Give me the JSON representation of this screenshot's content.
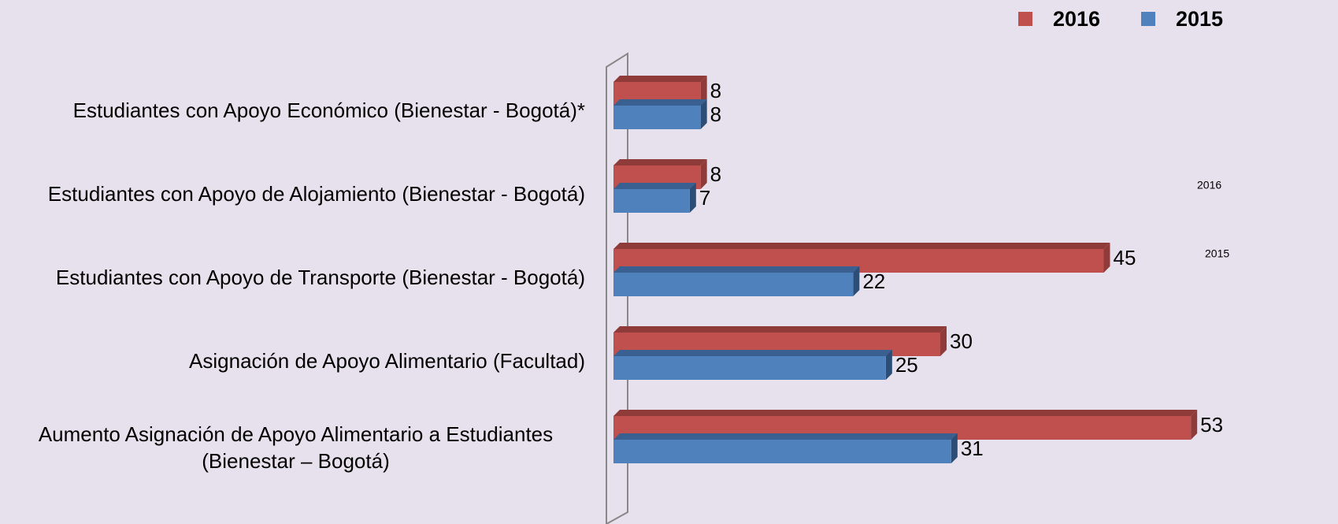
{
  "chart_data": {
    "type": "bar3d_horizontal",
    "categories": [
      "Estudiantes con Apoyo Económico (Bienestar - Bogotá)*",
      "Estudiantes con Apoyo de Alojamiento (Bienestar - Bogotá)",
      "Estudiantes con Apoyo de Transporte (Bienestar - Bogotá)",
      "Asignación de Apoyo Alimentario (Facultad)",
      "Aumento Asignación de Apoyo Alimentario a Estudiantes (Bienestar – Bogotá)"
    ],
    "series": [
      {
        "name": "2016",
        "color": "#c0504d",
        "top": "#8e3b39",
        "side": "#8e3b39",
        "values": [
          8,
          8,
          45,
          30,
          53
        ]
      },
      {
        "name": "2015",
        "color": "#4f81bd",
        "top": "#3a6091",
        "side": "#2c4d75",
        "values": [
          8,
          7,
          22,
          25,
          31
        ]
      }
    ],
    "xlim": [
      0,
      60
    ],
    "legend": "top-right"
  }
}
